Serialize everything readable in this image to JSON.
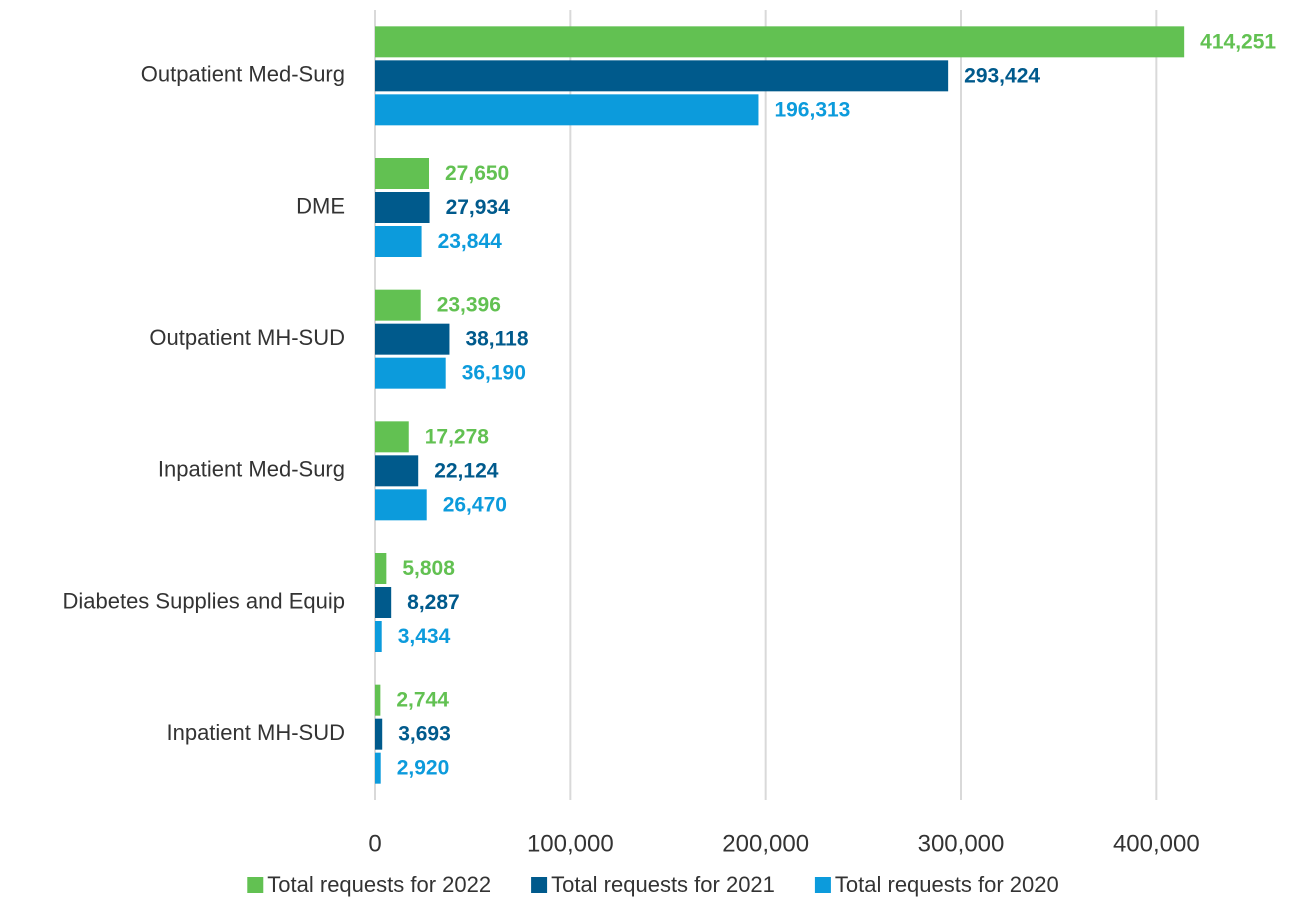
{
  "chart_data": {
    "type": "bar",
    "orientation": "horizontal",
    "categories": [
      "Outpatient Med-Surg",
      "DME",
      "Outpatient MH-SUD",
      "Inpatient Med-Surg",
      "Diabetes Supplies and Equip",
      "Inpatient MH-SUD"
    ],
    "series": [
      {
        "name": "Total requests for 2022",
        "color": "#62c152",
        "values": [
          414251,
          27650,
          23396,
          17278,
          5808,
          2744
        ],
        "value_labels": [
          "414,251",
          "27,650",
          "23,396",
          "17,278",
          "5,808",
          "2,744"
        ]
      },
      {
        "name": "Total requests for 2021",
        "color": "#005a8c",
        "values": [
          293424,
          27934,
          38118,
          22124,
          8287,
          3693
        ],
        "value_labels": [
          "293,424",
          "27,934",
          "38,118",
          "22,124",
          "8,287",
          "3,693"
        ]
      },
      {
        "name": "Total requests for 2020",
        "color": "#0c9bdc",
        "values": [
          196313,
          23844,
          36190,
          26470,
          3434,
          2920
        ],
        "value_labels": [
          "196,313",
          "23,844",
          "36,190",
          "26,470",
          "3,434",
          "2,920"
        ]
      }
    ],
    "xlim": [
      0,
      450000
    ],
    "xticks": [
      0,
      {
        "value": 100000,
        "label": "100,000"
      },
      {
        "value": 200000,
        "label": "200,000"
      },
      {
        "value": 300000,
        "label": "300,000"
      },
      {
        "value": 400000,
        "label": "400,000"
      }
    ],
    "grid": true,
    "legend": "bottom"
  }
}
